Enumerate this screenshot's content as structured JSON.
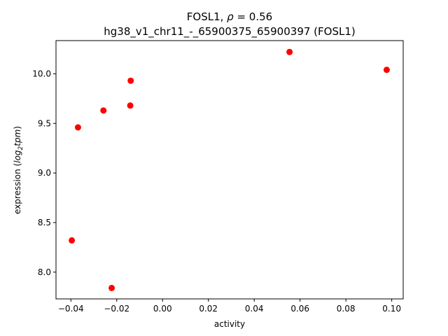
{
  "chart_data": {
    "type": "scatter",
    "title_line1_prefix": "FOSL1, ",
    "title_rho_symbol": "ρ",
    "title_rho_value": " = 0.56",
    "title_line2": "hg38_v1_chr11_-_65900375_65900397 (FOSL1)",
    "xlabel": "activity",
    "ylabel_prefix": "expression (",
    "ylabel_math": "log",
    "ylabel_sub": "2",
    "ylabel_math2": "tpm",
    "ylabel_suffix": ")",
    "xlim": [
      -0.0465,
      0.105
    ],
    "ylim": [
      7.73,
      10.335
    ],
    "x_ticks": [
      -0.04,
      -0.02,
      0.0,
      0.02,
      0.04,
      0.06,
      0.08,
      0.1
    ],
    "x_tick_labels": [
      "−0.04",
      "−0.02",
      "0.00",
      "0.02",
      "0.04",
      "0.06",
      "0.08",
      "0.10"
    ],
    "y_ticks": [
      8.0,
      8.5,
      9.0,
      9.5,
      10.0
    ],
    "y_tick_labels": [
      "8.0",
      "8.5",
      "9.0",
      "9.5",
      "10.0"
    ],
    "grid": false,
    "marker_color": "#ff0000",
    "points": [
      {
        "x": -0.0396,
        "y": 8.32
      },
      {
        "x": -0.0369,
        "y": 9.46
      },
      {
        "x": -0.0258,
        "y": 9.63
      },
      {
        "x": -0.0222,
        "y": 7.84
      },
      {
        "x": -0.0141,
        "y": 9.68
      },
      {
        "x": -0.0139,
        "y": 9.93
      },
      {
        "x": 0.0554,
        "y": 10.22
      },
      {
        "x": 0.0978,
        "y": 10.04
      }
    ]
  }
}
